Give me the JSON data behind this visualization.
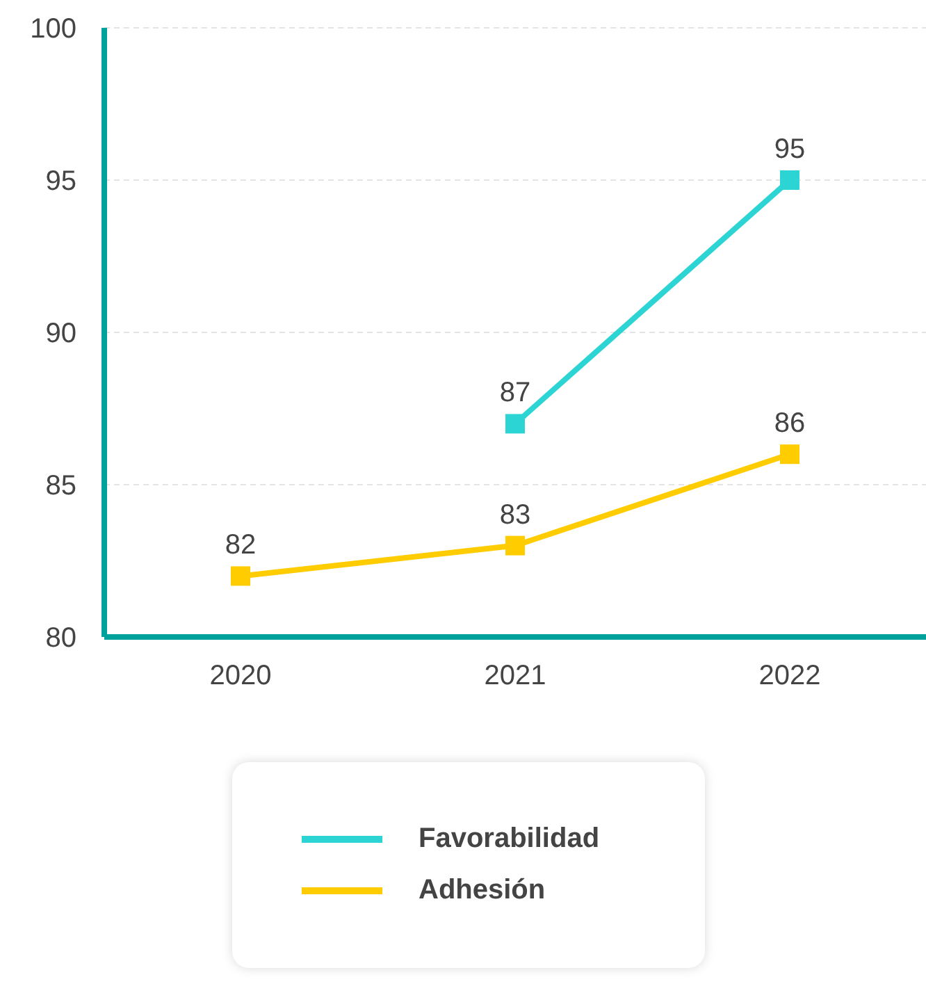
{
  "chart_data": {
    "type": "line",
    "categories": [
      "2020",
      "2021",
      "2022"
    ],
    "series": [
      {
        "name": "Favorabilidad",
        "color": "#2dd4d4",
        "values": [
          null,
          87,
          95
        ]
      },
      {
        "name": "Adhesión",
        "color": "#ffcc00",
        "values": [
          82,
          83,
          86
        ]
      }
    ],
    "ylim": [
      80,
      100
    ],
    "yticks": [
      80,
      85,
      90,
      95,
      100
    ],
    "grid": "y",
    "legend": "bottom",
    "marker": "square",
    "line_style": "solid",
    "data_labels": true
  }
}
